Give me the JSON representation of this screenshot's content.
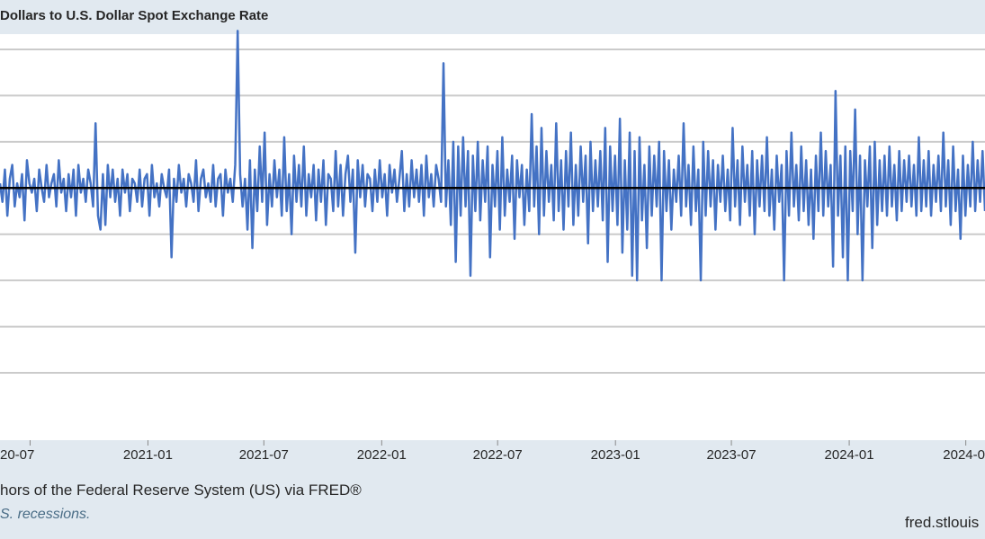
{
  "header": {
    "title": "Dollars to U.S. Dollar Spot Exchange Rate"
  },
  "footer": {
    "source": "hors of the Federal Reserve System (US) via FRED®",
    "recessions_note": "S. recessions.",
    "site": "fred.stlouis"
  },
  "colors": {
    "series": "#4472c4",
    "zero_line": "#000000",
    "grid": "#cbcbcb",
    "plot_bg": "#ffffff",
    "page_bg": "#e1e9f0"
  },
  "chart_data": {
    "type": "line",
    "title": "Dollars to U.S. Dollar Spot Exchange Rate",
    "x_tick_labels": [
      "20-07",
      "2021-01",
      "2021-07",
      "2022-01",
      "2022-07",
      "2023-01",
      "2023-07",
      "2024-01",
      "2024-0"
    ],
    "xlim": [
      "2020-05-15",
      "2024-07-31"
    ],
    "ylim": [
      -4,
      3
    ],
    "grid": true,
    "series": [
      {
        "values": [
          0.1,
          -0.3,
          0.4,
          -0.6,
          0.2,
          0.5,
          -0.4,
          0.1,
          -0.2,
          0.3,
          -0.7,
          0.6,
          0.1,
          -0.1,
          0.2,
          -0.5,
          0.4,
          0.0,
          -0.3,
          0.5,
          -0.2,
          0.1,
          0.3,
          -0.4,
          0.6,
          -0.1,
          0.2,
          -0.5,
          0.3,
          -0.2,
          0.4,
          -0.6,
          0.5,
          -0.1,
          0.2,
          -0.3,
          0.4,
          0.1,
          -0.4,
          1.4,
          -0.6,
          -0.9,
          0.3,
          -0.8,
          0.5,
          -0.2,
          0.4,
          -0.3,
          0.2,
          -0.6,
          0.4,
          -0.1,
          0.3,
          -0.5,
          0.2,
          0.1,
          -0.3,
          0.4,
          -0.4,
          0.2,
          0.3,
          -0.6,
          0.5,
          -0.2,
          0.1,
          -0.4,
          0.3,
          0.0,
          -0.2,
          0.4,
          -1.5,
          0.2,
          -0.3,
          0.5,
          -0.1,
          0.2,
          -0.4,
          0.3,
          0.1,
          -0.3,
          0.6,
          -0.5,
          0.2,
          0.4,
          -0.2,
          0.1,
          -0.3,
          0.5,
          -0.4,
          0.2,
          0.3,
          -0.6,
          0.4,
          -0.1,
          0.2,
          -0.3,
          0.5,
          3.4,
          0.3,
          -0.4,
          0.2,
          -0.9,
          0.6,
          -1.3,
          0.4,
          -0.5,
          0.9,
          -0.3,
          1.2,
          -0.8,
          0.3,
          -0.4,
          0.6,
          -0.2,
          0.4,
          -0.6,
          1.1,
          -0.5,
          0.3,
          -1.0,
          0.7,
          -0.3,
          0.5,
          -0.4,
          0.9,
          -0.6,
          0.3,
          -0.2,
          0.5,
          -0.7,
          0.4,
          -0.3,
          0.6,
          -0.8,
          0.3,
          0.2,
          -0.5,
          0.8,
          -0.4,
          0.5,
          -0.6,
          0.3,
          0.7,
          -0.3,
          0.4,
          -1.4,
          0.6,
          -0.2,
          0.5,
          -0.4,
          0.3,
          0.2,
          -0.5,
          0.4,
          -0.3,
          0.6,
          -0.2,
          0.3,
          -0.6,
          0.5,
          -0.1,
          0.4,
          -0.3,
          0.2,
          0.8,
          -0.5,
          0.3,
          -0.4,
          0.6,
          -0.2,
          0.4,
          -0.3,
          0.5,
          -0.6,
          0.7,
          -0.2,
          0.3,
          -0.4,
          0.5,
          0.2,
          -0.3,
          2.7,
          -0.4,
          0.6,
          -0.8,
          1.0,
          -1.6,
          0.9,
          -0.6,
          1.1,
          -0.4,
          0.8,
          -1.9,
          0.7,
          -0.5,
          1.0,
          -0.7,
          0.6,
          -0.3,
          0.9,
          -1.5,
          0.5,
          -0.4,
          0.8,
          -0.9,
          1.1,
          -0.6,
          0.4,
          -0.3,
          0.7,
          -1.1,
          0.6,
          -0.2,
          0.5,
          -0.8,
          0.4,
          -0.5,
          1.6,
          -0.4,
          0.9,
          -1.0,
          1.3,
          -0.6,
          0.8,
          -0.3,
          0.5,
          -0.7,
          1.4,
          -0.5,
          0.6,
          -0.9,
          0.8,
          -0.4,
          1.2,
          -0.8,
          0.5,
          -0.6,
          0.9,
          -0.3,
          0.7,
          -1.2,
          1.0,
          -0.5,
          0.6,
          -0.4,
          0.8,
          -0.7,
          1.3,
          -1.6,
          0.9,
          -0.5,
          0.7,
          -0.8,
          1.5,
          -1.4,
          0.6,
          -0.9,
          1.2,
          -1.9,
          0.8,
          -2.0,
          1.1,
          -0.7,
          0.5,
          -1.3,
          0.9,
          -0.6,
          0.7,
          -0.4,
          1.0,
          -2.0,
          0.8,
          -0.5,
          0.6,
          -0.9,
          0.4,
          -0.3,
          0.7,
          -0.6,
          1.4,
          -0.4,
          0.5,
          -0.8,
          0.9,
          -0.5,
          0.4,
          -2.0,
          1.0,
          -0.6,
          0.8,
          -0.4,
          0.6,
          -0.9,
          0.5,
          -0.3,
          0.7,
          -0.5,
          0.4,
          -0.7,
          1.3,
          -0.4,
          0.6,
          -0.8,
          0.9,
          -0.3,
          0.5,
          -0.6,
          0.8,
          -1.0,
          0.6,
          -0.4,
          0.7,
          -0.5,
          1.1,
          -0.6,
          0.4,
          -0.9,
          0.7,
          -0.3,
          0.5,
          -2.0,
          0.8,
          -0.6,
          1.2,
          -0.4,
          0.5,
          -0.7,
          0.9,
          -0.5,
          0.6,
          -0.8,
          0.4,
          -1.1,
          0.7,
          -0.5,
          1.2,
          -0.6,
          0.8,
          -0.4,
          0.5,
          -1.7,
          2.1,
          -0.6,
          0.7,
          -1.5,
          0.9,
          -2.0,
          0.8,
          -0.5,
          1.7,
          -1.0,
          0.7,
          -2.0,
          0.6,
          -0.4,
          0.9,
          -1.3,
          1.0,
          -0.8,
          0.6,
          -0.5,
          0.7,
          -0.6,
          0.9,
          -0.4,
          0.5,
          -0.7,
          0.8,
          -0.5,
          0.6,
          -0.3,
          0.7,
          -0.4,
          0.5,
          -0.6,
          1.1,
          -0.5,
          0.6,
          -0.4,
          0.8,
          -0.6,
          0.5,
          -0.3,
          0.7,
          -0.5,
          1.2,
          -0.4,
          0.6,
          -0.8,
          0.9,
          -0.5,
          0.4,
          -1.1,
          0.7,
          -0.6,
          0.5,
          -0.4,
          1.0,
          -0.5,
          0.6,
          -0.3,
          0.8,
          -0.5
        ]
      }
    ]
  }
}
